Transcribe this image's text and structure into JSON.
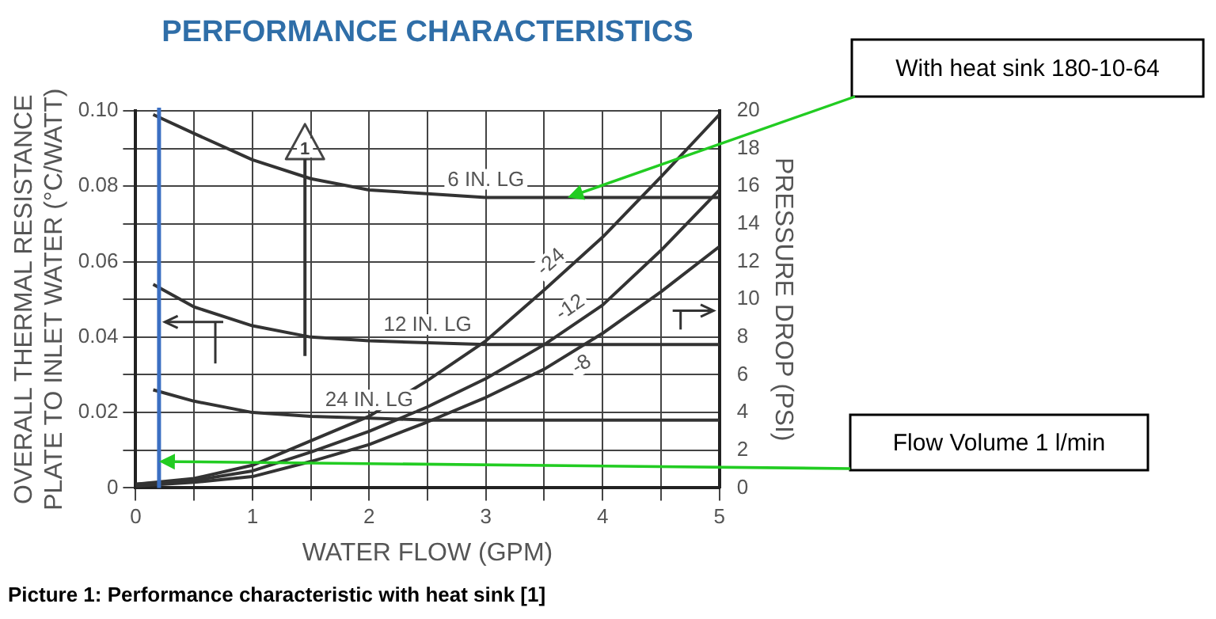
{
  "chart_data": {
    "type": "line",
    "title": "PERFORMANCE CHARACTERISTICS",
    "xlabel": "WATER FLOW (GPM)",
    "ylabel": "OVERALL THERMAL RESISTANCE\nPLATE TO INLET WATER (°C/WATT)",
    "y2label": "PRESSURE DROP (PSI)",
    "xlim": [
      0,
      5
    ],
    "xticks": [
      0,
      {
        "value": 0.5,
        "label": null
      },
      1,
      {
        "value": 1.5,
        "label": null
      },
      2,
      {
        "value": 2.5,
        "label": null
      },
      3,
      {
        "value": 3.5,
        "label": null
      },
      4,
      {
        "value": 4.5,
        "label": null
      },
      5
    ],
    "ylim": [
      0,
      0.1
    ],
    "yticks": [
      0,
      {
        "value": 0.01,
        "label": null
      },
      0.02,
      {
        "value": 0.03,
        "label": null
      },
      0.04,
      {
        "value": 0.05,
        "label": null
      },
      0.06,
      {
        "value": 0.07,
        "label": null
      },
      0.08,
      {
        "value": 0.09,
        "label": null
      },
      {
        "value": 0.1,
        "label": "0.10"
      }
    ],
    "y2lim": [
      0,
      20
    ],
    "y2ticks": [
      0,
      2,
      4,
      6,
      8,
      10,
      12,
      14,
      16,
      18,
      20
    ],
    "grid": true,
    "legend": false,
    "series": [
      {
        "name": "6 IN. LG",
        "color": "#333333",
        "x": [
          0.15,
          0.5,
          1,
          1.5,
          2,
          2.5,
          3,
          4,
          5
        ],
        "values": [
          0.099,
          0.094,
          0.087,
          0.082,
          0.079,
          0.078,
          0.077,
          0.077,
          0.077
        ]
      },
      {
        "name": "12 IN. LG",
        "color": "#333333",
        "x": [
          0.15,
          0.5,
          1,
          1.5,
          2,
          2.5,
          3,
          4,
          5
        ],
        "values": [
          0.054,
          0.048,
          0.043,
          0.04,
          0.039,
          0.0385,
          0.038,
          0.038,
          0.038
        ]
      },
      {
        "name": "24 IN. LG",
        "color": "#333333",
        "x": [
          0.15,
          0.5,
          1,
          1.5,
          2,
          2.5,
          3,
          4,
          5
        ],
        "values": [
          0.026,
          0.023,
          0.02,
          0.019,
          0.0185,
          0.018,
          0.018,
          0.018,
          0.018
        ]
      },
      {
        "name": "-24",
        "color": "#333333",
        "axis": "y2",
        "x": [
          0,
          0.5,
          1,
          1.5,
          2,
          2.5,
          3,
          3.5,
          4,
          4.5,
          5
        ],
        "values": [
          0.2,
          0.5,
          1.2,
          2.5,
          3.8,
          5.7,
          7.8,
          10.5,
          13.3,
          16.5,
          19.8
        ]
      },
      {
        "name": "-12",
        "color": "#333333",
        "axis": "y2",
        "x": [
          0,
          0.5,
          1,
          1.5,
          2,
          2.5,
          3,
          3.5,
          4,
          4.5,
          5
        ],
        "values": [
          0.2,
          0.4,
          0.9,
          1.9,
          3,
          4.3,
          5.8,
          7.6,
          9.7,
          12.6,
          15.8
        ]
      },
      {
        "name": "-8",
        "color": "#333333",
        "axis": "y2",
        "x": [
          0,
          0.5,
          1,
          1.5,
          2,
          2.5,
          3,
          3.5,
          4,
          4.5,
          5
        ],
        "values": [
          0.1,
          0.3,
          0.6,
          1.4,
          2.3,
          3.5,
          4.8,
          6.3,
          8.2,
          10.4,
          12.8
        ]
      }
    ],
    "ref_lines": [
      {
        "axis": "x",
        "value": 0.2,
        "color": "#3b6fc2"
      }
    ],
    "annotations": [
      "With heat sink 180-10-64",
      "Flow Volume 1 l/min",
      "1",
      "Picture 1: Performance characteristic with heat sink [1]"
    ]
  }
}
